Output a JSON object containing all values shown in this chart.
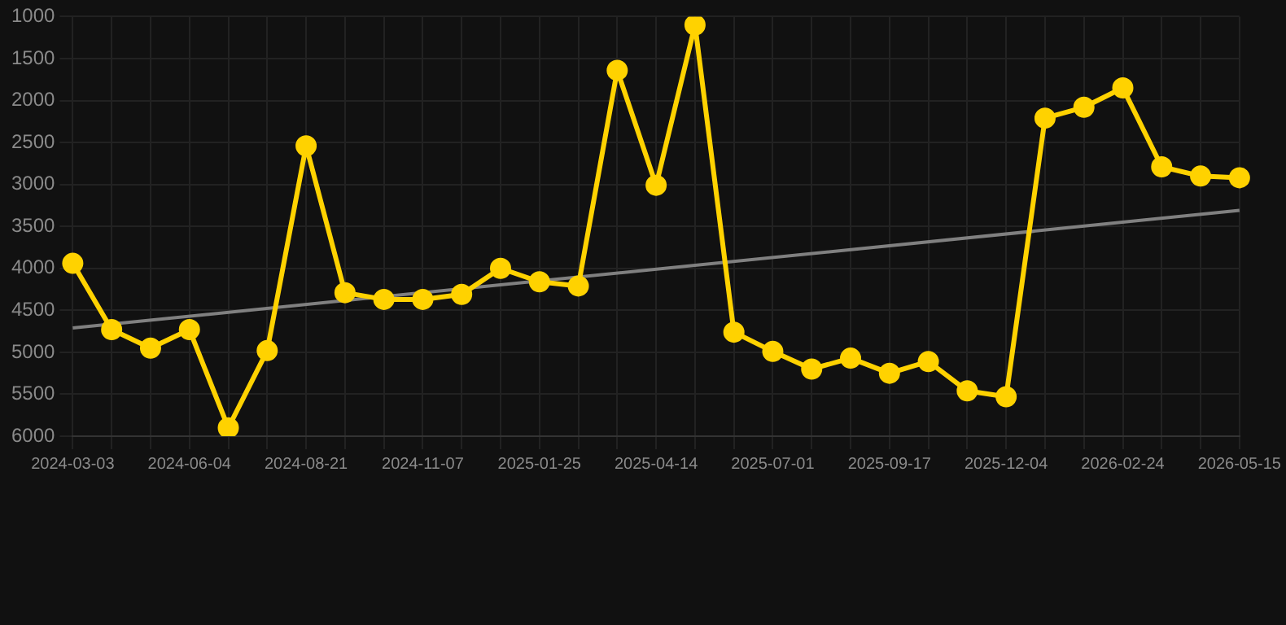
{
  "chart_data": {
    "type": "line",
    "categories": [
      "2024-03-03",
      null,
      null,
      "2024-06-04",
      null,
      null,
      "2024-08-21",
      null,
      null,
      "2024-11-07",
      null,
      null,
      "2025-01-25",
      null,
      null,
      "2025-04-14",
      null,
      null,
      "2025-07-01",
      null,
      null,
      "2025-09-17",
      null,
      null,
      "2025-12-04",
      null,
      null,
      "2026-02-24",
      null,
      null,
      "2026-05-15"
    ],
    "series": [
      {
        "color": "#ffd200",
        "marker": "circle",
        "values": [
          3940,
          4730,
          4950,
          4730,
          5900,
          4980,
          2540,
          4290,
          4370,
          4370,
          4310,
          4000,
          4160,
          4210,
          1640,
          3010,
          1100,
          4760,
          4990,
          5200,
          5070,
          5250,
          5110,
          5460,
          5530,
          2210,
          2080,
          1850,
          2790,
          2900,
          2920
        ]
      },
      {
        "type": "line",
        "color": "#808080",
        "marker": "none",
        "values": [
          4710,
          null,
          null,
          null,
          null,
          null,
          null,
          null,
          null,
          null,
          null,
          null,
          null,
          null,
          null,
          null,
          null,
          null,
          null,
          null,
          null,
          null,
          null,
          null,
          null,
          null,
          null,
          null,
          null,
          null,
          3310
        ]
      }
    ],
    "ylim": [
      6000,
      1000
    ],
    "yticks": [
      1000,
      1500,
      2000,
      2500,
      3000,
      3500,
      4000,
      4500,
      5000,
      5500,
      6000
    ],
    "grid": true,
    "line_style": "solid"
  }
}
